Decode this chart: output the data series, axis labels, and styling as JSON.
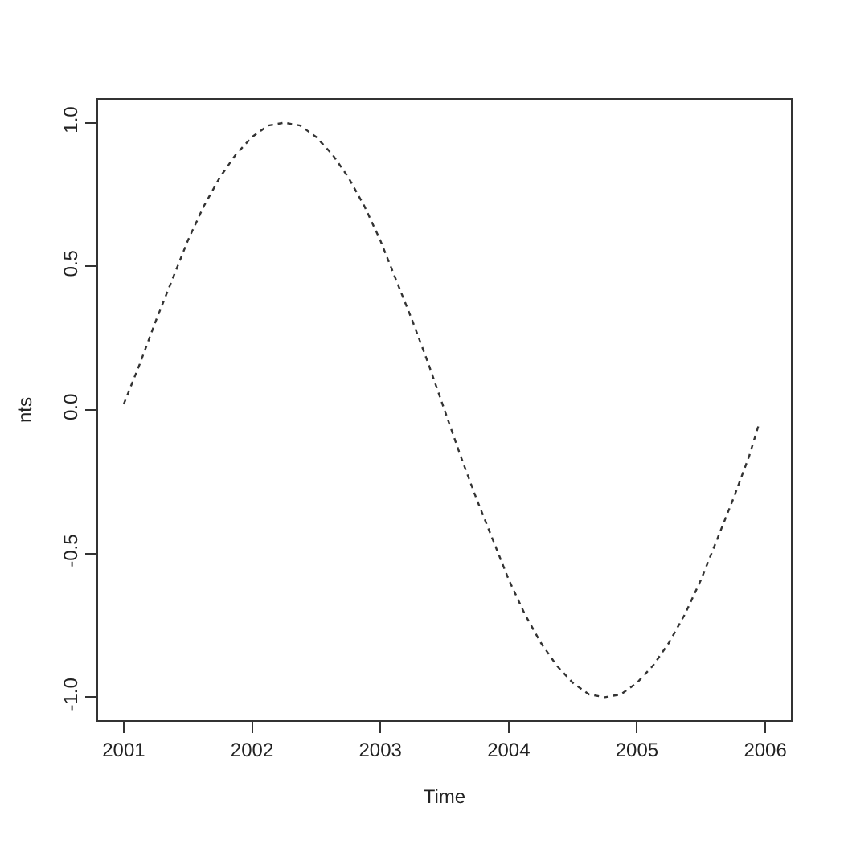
{
  "chart_data": {
    "type": "line",
    "xlabel": "Time",
    "ylabel": "nts",
    "x": [
      2001,
      2001.125,
      2001.25,
      2001.375,
      2001.5,
      2001.625,
      2001.75,
      2001.875,
      2002,
      2002.125,
      2002.25,
      2002.375,
      2002.5,
      2002.625,
      2002.75,
      2002.875,
      2003,
      2003.125,
      2003.25,
      2003.375,
      2003.5,
      2003.625,
      2003.75,
      2003.875,
      2004,
      2004.125,
      2004.25,
      2004.375,
      2004.5,
      2004.625,
      2004.75,
      2004.875,
      2005,
      2005.125,
      2005.25,
      2005.375,
      2005.5,
      2005.625,
      2005.75,
      2005.875,
      2005.95
    ],
    "series": [
      {
        "color": "#333333",
        "values": [
          0.02,
          0.16,
          0.31,
          0.45,
          0.59,
          0.71,
          0.81,
          0.89,
          0.95,
          0.99,
          1.0,
          0.99,
          0.95,
          0.89,
          0.81,
          0.71,
          0.59,
          0.45,
          0.31,
          0.16,
          0.0,
          -0.16,
          -0.31,
          -0.45,
          -0.59,
          -0.71,
          -0.81,
          -0.89,
          -0.95,
          -0.99,
          -1.0,
          -0.99,
          -0.95,
          -0.89,
          -0.81,
          -0.71,
          -0.59,
          -0.45,
          -0.31,
          -0.16,
          -0.05
        ]
      }
    ],
    "xlim": [
      2000.8,
      2006.2
    ],
    "xticks": [
      2001,
      2002,
      2003,
      2004,
      2005,
      2006
    ],
    "ylim": [
      -1.08,
      1.08
    ],
    "yticks": [
      {
        "value": -1,
        "label": "-1.0"
      },
      {
        "value": -0.5,
        "label": "-0.5"
      },
      {
        "value": 0,
        "label": "0.0"
      },
      {
        "value": 0.5,
        "label": "0.5"
      },
      {
        "value": 1,
        "label": "1.0"
      }
    ],
    "legend": false,
    "line_style": "dotted"
  }
}
